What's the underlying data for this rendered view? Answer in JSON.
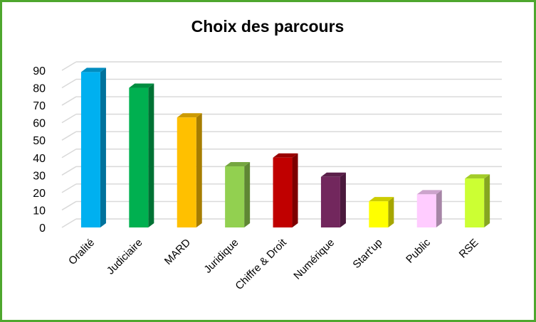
{
  "chart_data": {
    "type": "bar",
    "title": "Choix des parcours",
    "categories": [
      "Oralité",
      "Judiciaire",
      "MARD",
      "Juridique",
      "Chiffre & Droit",
      "Numérique",
      "Start'up",
      "Public",
      "RSE"
    ],
    "values": [
      89,
      80,
      63,
      35,
      40,
      29,
      15,
      19,
      28
    ],
    "colors": [
      "#00b0f0",
      "#00b050",
      "#ffc000",
      "#92d050",
      "#c00000",
      "#72275d",
      "#ffff00",
      "#ffccff",
      "#ccff33"
    ],
    "ylim": [
      0,
      90
    ],
    "yticks": [
      0,
      10,
      20,
      30,
      40,
      50,
      60,
      70,
      80,
      90
    ],
    "grid": true,
    "legend": "none",
    "style": "3d-column",
    "border_color": "#4ea72e"
  }
}
